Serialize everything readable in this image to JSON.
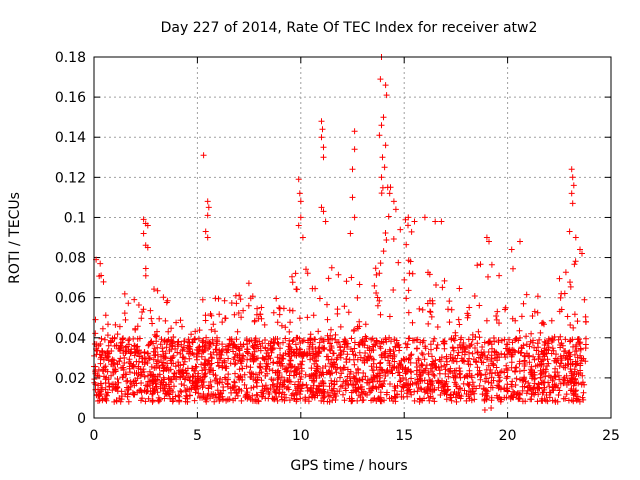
{
  "chart_data": {
    "type": "scatter",
    "title": "Day 227 of 2014, Rate Of TEC Index for receiver atw2",
    "xlabel": "GPS time / hours",
    "ylabel": "ROTI / TECUs",
    "xlim": [
      0,
      25
    ],
    "ylim": [
      0,
      0.18
    ],
    "x_ticks": [
      0,
      5,
      10,
      15,
      20,
      25
    ],
    "x_tick_labels": [
      "0",
      "5",
      "10",
      "15",
      "20",
      "25"
    ],
    "y_ticks": [
      0,
      0.02,
      0.04,
      0.06,
      0.08,
      0.1,
      0.12,
      0.14,
      0.16,
      0.18
    ],
    "y_tick_labels": [
      "0",
      "0.02",
      "0.04",
      "0.06",
      "0.08",
      "0.1",
      "0.12",
      "0.14",
      "0.16",
      "0.18"
    ],
    "grid": true,
    "marker": "+",
    "marker_color": "#ff0000",
    "data_span_hours": [
      0,
      23.8
    ],
    "baseline_band": [
      0.008,
      0.04
    ],
    "upper_envelope": [
      {
        "x": 0.0,
        "y": 0.05
      },
      {
        "x": 0.2,
        "y": 0.078
      },
      {
        "x": 0.5,
        "y": 0.07
      },
      {
        "x": 1.0,
        "y": 0.058
      },
      {
        "x": 1.5,
        "y": 0.062
      },
      {
        "x": 2.0,
        "y": 0.065
      },
      {
        "x": 2.5,
        "y": 0.099
      },
      {
        "x": 3.0,
        "y": 0.07
      },
      {
        "x": 3.5,
        "y": 0.06
      },
      {
        "x": 4.0,
        "y": 0.05
      },
      {
        "x": 4.5,
        "y": 0.06
      },
      {
        "x": 5.0,
        "y": 0.065
      },
      {
        "x": 5.5,
        "y": 0.07
      },
      {
        "x": 6.0,
        "y": 0.06
      },
      {
        "x": 7.0,
        "y": 0.062
      },
      {
        "x": 7.5,
        "y": 0.07
      },
      {
        "x": 8.0,
        "y": 0.058
      },
      {
        "x": 8.5,
        "y": 0.06
      },
      {
        "x": 9.0,
        "y": 0.064
      },
      {
        "x": 9.5,
        "y": 0.072
      },
      {
        "x": 10.0,
        "y": 0.085
      },
      {
        "x": 10.5,
        "y": 0.075
      },
      {
        "x": 11.0,
        "y": 0.08
      },
      {
        "x": 11.5,
        "y": 0.075
      },
      {
        "x": 12.0,
        "y": 0.07
      },
      {
        "x": 12.5,
        "y": 0.082
      },
      {
        "x": 13.0,
        "y": 0.068
      },
      {
        "x": 13.5,
        "y": 0.075
      },
      {
        "x": 14.0,
        "y": 0.14
      },
      {
        "x": 14.5,
        "y": 0.105
      },
      {
        "x": 15.0,
        "y": 0.105
      },
      {
        "x": 15.5,
        "y": 0.09
      },
      {
        "x": 16.0,
        "y": 0.078
      },
      {
        "x": 16.5,
        "y": 0.075
      },
      {
        "x": 17.0,
        "y": 0.068
      },
      {
        "x": 17.5,
        "y": 0.062
      },
      {
        "x": 18.0,
        "y": 0.07
      },
      {
        "x": 18.5,
        "y": 0.078
      },
      {
        "x": 19.0,
        "y": 0.085
      },
      {
        "x": 19.5,
        "y": 0.07
      },
      {
        "x": 20.0,
        "y": 0.078
      },
      {
        "x": 20.5,
        "y": 0.075
      },
      {
        "x": 21.0,
        "y": 0.068
      },
      {
        "x": 21.5,
        "y": 0.062
      },
      {
        "x": 22.0,
        "y": 0.075
      },
      {
        "x": 22.5,
        "y": 0.07
      },
      {
        "x": 23.0,
        "y": 0.08
      },
      {
        "x": 23.5,
        "y": 0.083
      },
      {
        "x": 23.8,
        "y": 0.06
      }
    ],
    "notable_points": [
      {
        "x": 0.1,
        "y": 0.079
      },
      {
        "x": 0.3,
        "y": 0.077
      },
      {
        "x": 2.4,
        "y": 0.099
      },
      {
        "x": 2.5,
        "y": 0.097
      },
      {
        "x": 2.6,
        "y": 0.096
      },
      {
        "x": 2.4,
        "y": 0.092
      },
      {
        "x": 2.6,
        "y": 0.085
      },
      {
        "x": 5.3,
        "y": 0.131
      },
      {
        "x": 5.5,
        "y": 0.108
      },
      {
        "x": 5.55,
        "y": 0.105
      },
      {
        "x": 5.5,
        "y": 0.101
      },
      {
        "x": 5.4,
        "y": 0.093
      },
      {
        "x": 5.5,
        "y": 0.09
      },
      {
        "x": 9.9,
        "y": 0.119
      },
      {
        "x": 9.95,
        "y": 0.112
      },
      {
        "x": 10.0,
        "y": 0.108
      },
      {
        "x": 10.0,
        "y": 0.1
      },
      {
        "x": 9.9,
        "y": 0.096
      },
      {
        "x": 10.1,
        "y": 0.09
      },
      {
        "x": 11.0,
        "y": 0.148
      },
      {
        "x": 11.05,
        "y": 0.144
      },
      {
        "x": 11.0,
        "y": 0.14
      },
      {
        "x": 11.1,
        "y": 0.135
      },
      {
        "x": 11.1,
        "y": 0.13
      },
      {
        "x": 11.0,
        "y": 0.105
      },
      {
        "x": 11.1,
        "y": 0.103
      },
      {
        "x": 11.2,
        "y": 0.098
      },
      {
        "x": 12.6,
        "y": 0.143
      },
      {
        "x": 12.6,
        "y": 0.134
      },
      {
        "x": 12.5,
        "y": 0.124
      },
      {
        "x": 12.5,
        "y": 0.11
      },
      {
        "x": 12.6,
        "y": 0.1
      },
      {
        "x": 12.4,
        "y": 0.092
      },
      {
        "x": 13.9,
        "y": 0.18
      },
      {
        "x": 13.85,
        "y": 0.169
      },
      {
        "x": 14.1,
        "y": 0.166
      },
      {
        "x": 14.15,
        "y": 0.161
      },
      {
        "x": 14.0,
        "y": 0.15
      },
      {
        "x": 13.9,
        "y": 0.146
      },
      {
        "x": 13.8,
        "y": 0.141
      },
      {
        "x": 14.1,
        "y": 0.136
      },
      {
        "x": 13.95,
        "y": 0.13
      },
      {
        "x": 14.05,
        "y": 0.125
      },
      {
        "x": 13.9,
        "y": 0.12
      },
      {
        "x": 14.2,
        "y": 0.115
      },
      {
        "x": 14.3,
        "y": 0.112
      },
      {
        "x": 14.5,
        "y": 0.108
      },
      {
        "x": 14.6,
        "y": 0.104
      },
      {
        "x": 15.2,
        "y": 0.1
      },
      {
        "x": 15.5,
        "y": 0.098
      },
      {
        "x": 16.0,
        "y": 0.1
      },
      {
        "x": 16.5,
        "y": 0.098
      },
      {
        "x": 16.8,
        "y": 0.098
      },
      {
        "x": 19.0,
        "y": 0.09
      },
      {
        "x": 19.1,
        "y": 0.088
      },
      {
        "x": 20.2,
        "y": 0.084
      },
      {
        "x": 20.6,
        "y": 0.088
      },
      {
        "x": 23.1,
        "y": 0.124
      },
      {
        "x": 23.15,
        "y": 0.12
      },
      {
        "x": 23.2,
        "y": 0.116
      },
      {
        "x": 23.1,
        "y": 0.112
      },
      {
        "x": 23.15,
        "y": 0.107
      },
      {
        "x": 23.0,
        "y": 0.093
      },
      {
        "x": 23.3,
        "y": 0.09
      },
      {
        "x": 23.5,
        "y": 0.084
      },
      {
        "x": 23.6,
        "y": 0.082
      },
      {
        "x": 18.9,
        "y": 0.004
      },
      {
        "x": 19.2,
        "y": 0.005
      }
    ]
  }
}
